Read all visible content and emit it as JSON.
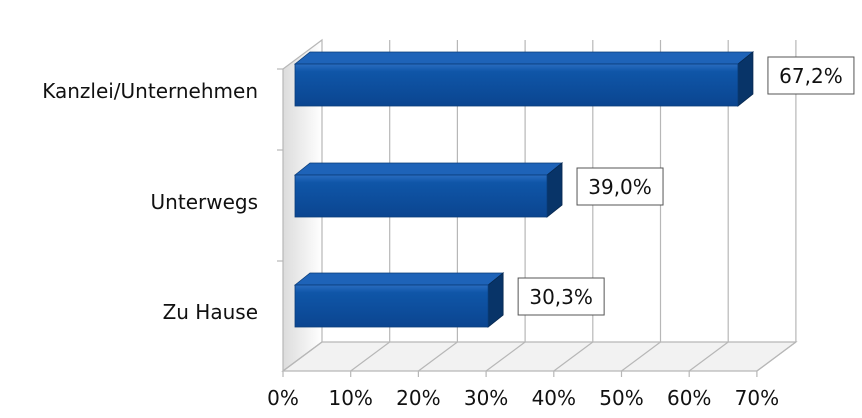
{
  "chart_data": {
    "type": "bar",
    "orientation": "horizontal",
    "three_d": true,
    "categories": [
      "Kanzlei/Unternehmen",
      "Unterwegs",
      "Zu Hause"
    ],
    "values": [
      67.2,
      39.0,
      30.3
    ],
    "data_labels": [
      "67,2%",
      "39,0%",
      "30,3%"
    ],
    "x_ticks": [
      "0%",
      "10%",
      "20%",
      "30%",
      "40%",
      "50%",
      "60%",
      "70%"
    ],
    "xlim": [
      0,
      70
    ],
    "grid": true,
    "colors": {
      "bar_front": "#0d4f9f",
      "bar_top": "#1e63b8",
      "bar_side": "#083468",
      "grid": "#b7b7b7",
      "label_border": "#555555"
    }
  }
}
